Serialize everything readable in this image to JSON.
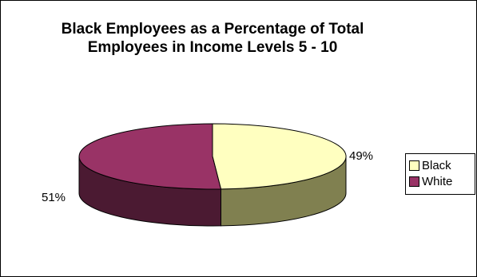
{
  "chart_data": {
    "type": "pie",
    "title": [
      "Black Employees as a Percentage of Total",
      "Employees in Income Levels 5 - 10"
    ],
    "categories": [
      "Black",
      "White"
    ],
    "values": [
      49,
      51
    ],
    "data_labels": [
      "49%",
      "51%"
    ],
    "colors": {
      "Black": {
        "top": "#FFFFC0",
        "side": "#808050"
      },
      "White": {
        "top": "#993366",
        "side": "#4B1A32"
      }
    },
    "style": "3d-pie",
    "legend": "right"
  }
}
